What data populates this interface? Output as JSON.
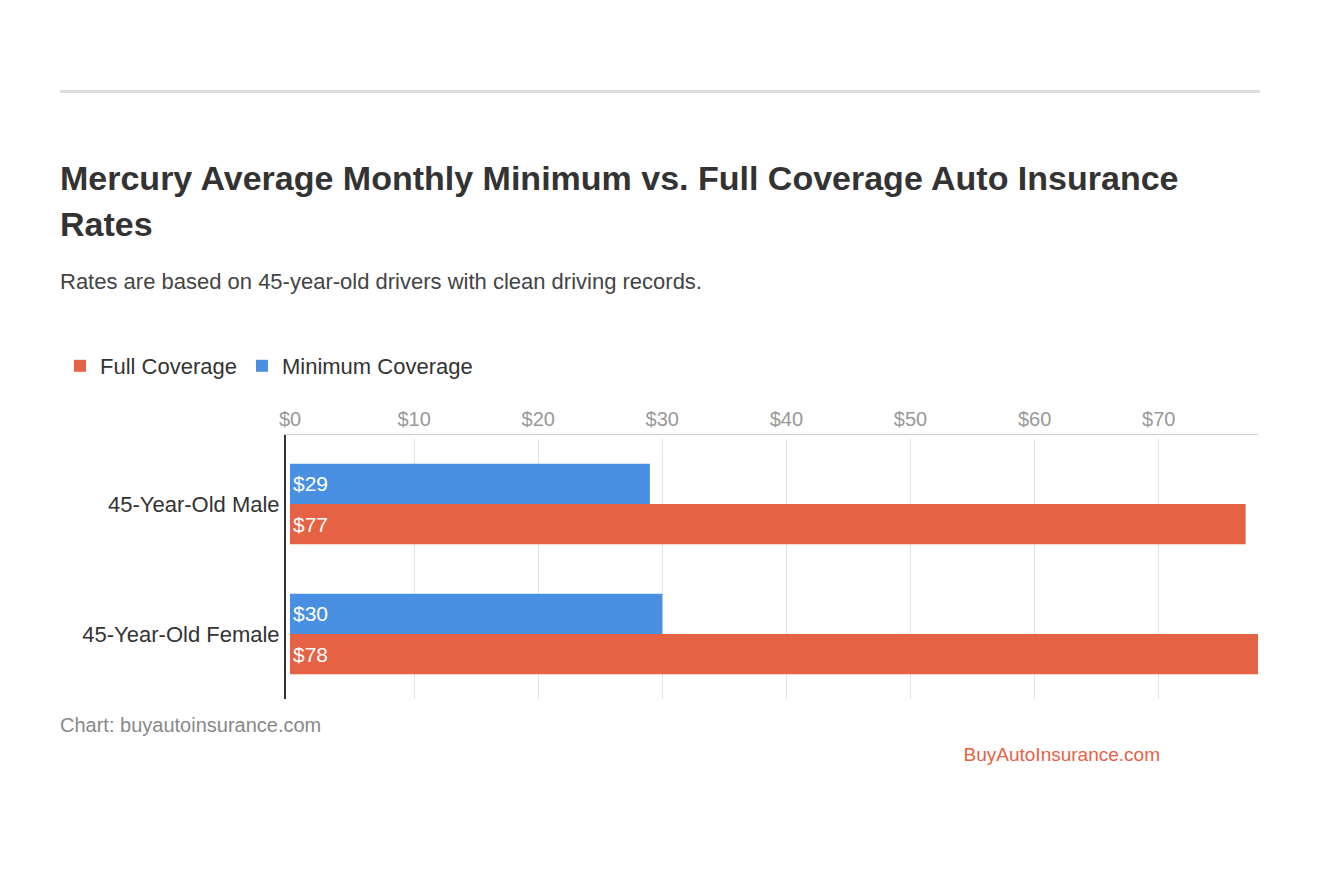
{
  "chart_data": {
    "type": "bar",
    "title": "Mercury Average Monthly Minimum vs. Full Coverage Auto Insurance Rates",
    "subtitle": "Rates are based on 45-year-old drivers with clean driving records.",
    "annotations": [
      "Chart: buyautoinsurance.com",
      "BuyAutoInsurance.com"
    ],
    "orientation": "horizontal",
    "categories": [
      "45-Year-Old Male",
      "45-Year-Old Female"
    ],
    "series": [
      {
        "name": "Minimum Coverage",
        "color": "#4a90e2",
        "values": [
          29,
          30
        ],
        "value_labels": [
          "$29",
          "$30"
        ]
      },
      {
        "name": "Full Coverage",
        "color": "#e56245",
        "values": [
          77,
          78
        ],
        "value_labels": [
          "$77",
          "$78"
        ]
      }
    ],
    "xlim": [
      0,
      78
    ],
    "xticks": [
      {
        "value": 0,
        "label": "$0"
      },
      {
        "value": 10,
        "label": "$10"
      },
      {
        "value": 20,
        "label": "$20"
      },
      {
        "value": 30,
        "label": "$30"
      },
      {
        "value": 40,
        "label": "$40"
      },
      {
        "value": 50,
        "label": "$50"
      },
      {
        "value": 60,
        "label": "$60"
      },
      {
        "value": 70,
        "label": "$70"
      }
    ],
    "grid": true,
    "legend": "top-left",
    "data_labels": true
  }
}
